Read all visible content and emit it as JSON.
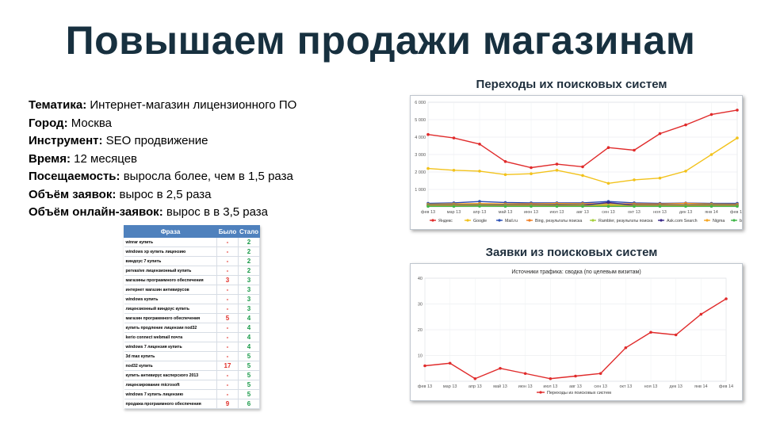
{
  "slide": {
    "title": "Повышаем продажи магазинам"
  },
  "facts": [
    {
      "label": "Тематика:",
      "value": " Интернет-магазин лицензионного ПО"
    },
    {
      "label": "Город:",
      "value": " Москва"
    },
    {
      "label": "Инструмент:",
      "value": " SEO продвижение"
    },
    {
      "label": "Время:",
      "value": " 12 месяцев"
    },
    {
      "label": "Посещаемость:",
      "value": " выросла более, чем в 1,5 раза"
    },
    {
      "label": "Объём заявок:",
      "value": " вырос в 2,5 раза"
    },
    {
      "label": "Объём онлайн-заявок:",
      "value": " вырос в в 3,5 раза"
    }
  ],
  "phrase_table": {
    "headers": [
      "Фраза",
      "Было",
      "Стало"
    ],
    "rows": [
      {
        "phrase": "winrar купить",
        "before": "-",
        "after": "2"
      },
      {
        "phrase": "windows xp купить лицензию",
        "before": "-",
        "after": "2"
      },
      {
        "phrase": "виндоус 7 купить",
        "before": "-",
        "after": "2"
      },
      {
        "phrase": "pervasive лицензионный купить",
        "before": "-",
        "after": "2"
      },
      {
        "phrase": "магазины программного обеспечения",
        "before": "3",
        "after": "3"
      },
      {
        "phrase": "интернет магазин антивирусов",
        "before": "-",
        "after": "3"
      },
      {
        "phrase": "windows купить",
        "before": "-",
        "after": "3"
      },
      {
        "phrase": "лицензионный виндоус купить",
        "before": "-",
        "after": "3"
      },
      {
        "phrase": "магазин программного обеспечения",
        "before": "5",
        "after": "4"
      },
      {
        "phrase": "купить продление лицензии nod32",
        "before": "-",
        "after": "4"
      },
      {
        "phrase": "kerio connect webmail почта",
        "before": "-",
        "after": "4"
      },
      {
        "phrase": "windows 7 лицензия купить",
        "before": "-",
        "after": "4"
      },
      {
        "phrase": "3d max купить",
        "before": "-",
        "after": "5"
      },
      {
        "phrase": "nod32 купить",
        "before": "17",
        "after": "5"
      },
      {
        "phrase": "купить антивирус касперского 2013",
        "before": "-",
        "after": "5"
      },
      {
        "phrase": "лицензирование microsoft",
        "before": "-",
        "after": "5"
      },
      {
        "phrase": "windows 7 купить лицензию",
        "before": "-",
        "after": "5"
      },
      {
        "phrase": "продажа программного обеспечения",
        "before": "9",
        "after": "6"
      }
    ],
    "colors": {
      "before": "#e0302a",
      "after": "#1a9a4a",
      "header": "#4f81bd"
    }
  },
  "chart_data": [
    {
      "type": "line",
      "title": "Переходы их поисковых систем",
      "categories": [
        "фев 13",
        "мар 13",
        "апр 13",
        "май 13",
        "июн 13",
        "июл 13",
        "авг 13",
        "сен 13",
        "окт 13",
        "ноя 13",
        "дек 13",
        "янв 14",
        "фев 14"
      ],
      "ylim": [
        0,
        6000
      ],
      "yticks": [
        "1 000",
        "2 000",
        "3 000",
        "4 000",
        "5 000",
        "6 000"
      ],
      "grid": true,
      "legend_position": "bottom",
      "series": [
        {
          "name": "Яндекс",
          "color": "#e02b2b",
          "values": [
            4150,
            3950,
            3600,
            2600,
            2250,
            2450,
            2300,
            3400,
            3250,
            4200,
            4700,
            5300,
            5550
          ]
        },
        {
          "name": "Google",
          "color": "#f2c21b",
          "values": [
            2200,
            2100,
            2050,
            1850,
            1900,
            2100,
            1800,
            1350,
            1550,
            1650,
            2050,
            3000,
            3950
          ]
        },
        {
          "name": "Mail.ru",
          "color": "#2a4fb5",
          "values": [
            200,
            230,
            310,
            250,
            230,
            230,
            230,
            310,
            230,
            200,
            220,
            200,
            200
          ]
        },
        {
          "name": "Bing, результаты поиска",
          "color": "#f07d22",
          "values": [
            150,
            170,
            190,
            170,
            170,
            190,
            180,
            190,
            170,
            160,
            200,
            160,
            150
          ]
        },
        {
          "name": "Rambler, результаты поиска",
          "color": "#a6cf3c",
          "values": [
            120,
            130,
            140,
            120,
            110,
            130,
            120,
            120,
            110,
            110,
            120,
            120,
            110
          ]
        },
        {
          "name": "Ask.com Search",
          "color": "#3b2a8a",
          "values": [
            90,
            100,
            100,
            90,
            90,
            100,
            90,
            250,
            90,
            90,
            100,
            90,
            90
          ]
        },
        {
          "name": "Nigma",
          "color": "#f5a623",
          "values": [
            60,
            70,
            70,
            60,
            60,
            60,
            60,
            70,
            60,
            60,
            70,
            60,
            60
          ]
        },
        {
          "name": "baidu.com",
          "color": "#3fb548",
          "values": [
            30,
            30,
            40,
            30,
            30,
            30,
            30,
            30,
            30,
            30,
            30,
            30,
            30
          ]
        }
      ]
    },
    {
      "type": "line",
      "title": "Заявки из поисковых систем",
      "subtitle": "Источники трафика: сводка (по целевым визитам)",
      "categories": [
        "фев 13",
        "мар 13",
        "апр 13",
        "май 13",
        "июн 13",
        "июл 13",
        "авг 13",
        "сен 13",
        "окт 13",
        "ноя 13",
        "дек 13",
        "янв 14",
        "фев 14"
      ],
      "ylim": [
        0,
        40
      ],
      "yticks": [
        "10",
        "20",
        "30",
        "40"
      ],
      "grid": true,
      "legend_position": "bottom",
      "series": [
        {
          "name": "Переходы из поисковых систем",
          "color": "#e02b2b",
          "values": [
            6,
            7,
            1,
            5,
            3,
            1,
            2,
            3,
            13,
            19,
            18,
            26,
            32
          ]
        }
      ]
    }
  ]
}
